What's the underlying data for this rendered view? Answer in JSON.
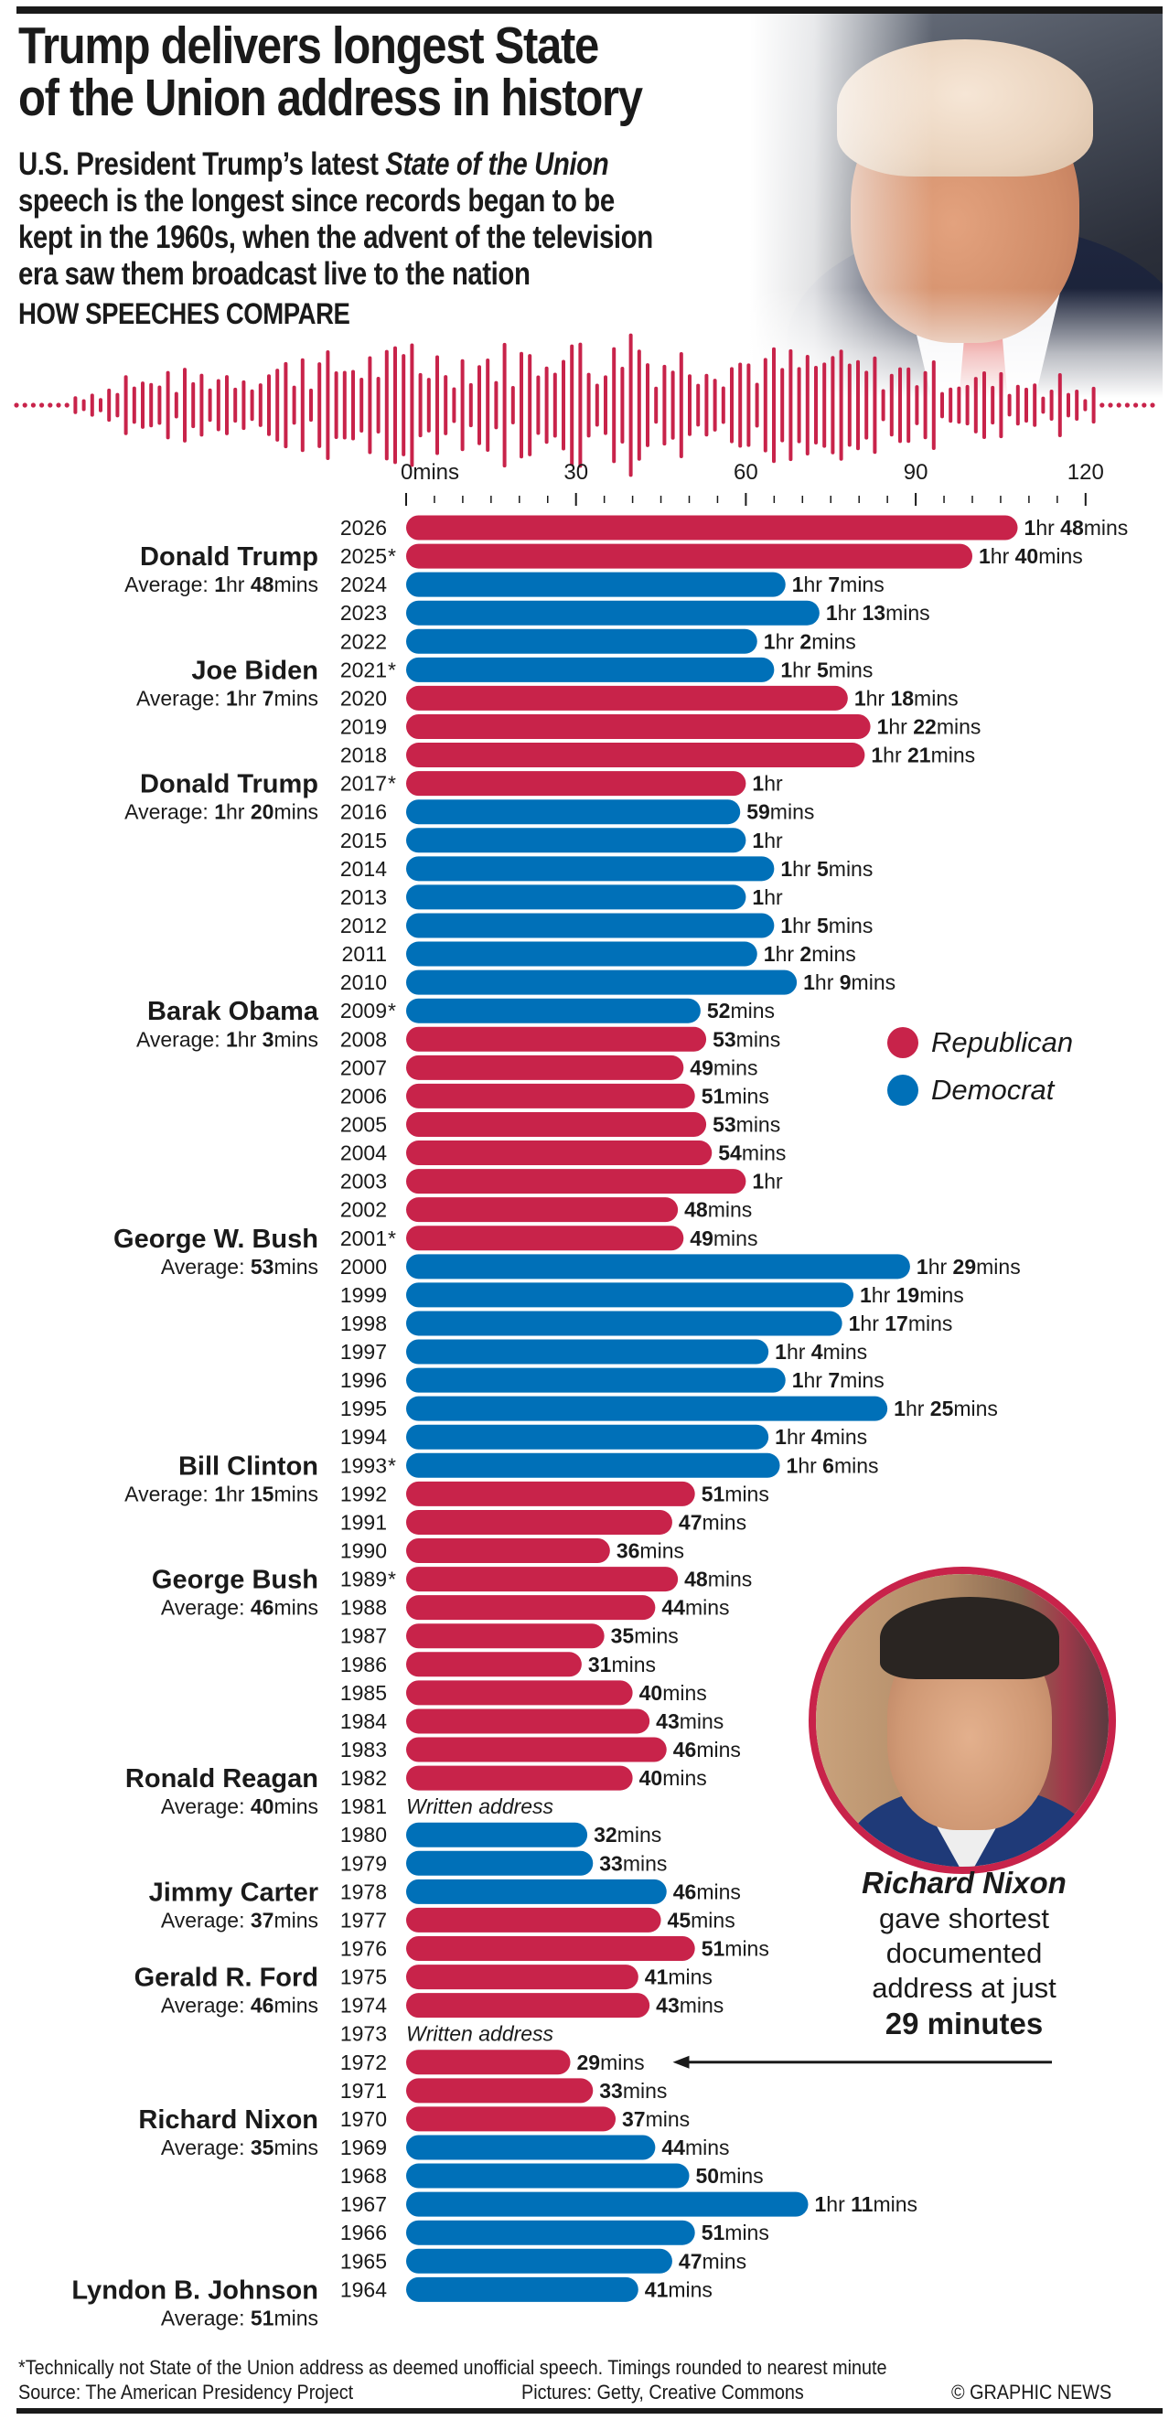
{
  "header": {
    "title_line1": "Trump delivers longest State",
    "title_line2": "of the Union address in history",
    "subtitle_line1_pre": "U.S. President Trump’s latest ",
    "subtitle_line1_italic": "State of the Union",
    "subtitle_line2": "speech is the longest since records began to be",
    "subtitle_line3": "kept in the 1960s, when the advent of the television",
    "subtitle_line4": "era saw them broadcast live to the nation",
    "section_heading": "HOW SPEECHES COMPARE"
  },
  "colors": {
    "republican": "#C8234A",
    "democrat": "#0070B8",
    "text": "#1a1a1a"
  },
  "legend": {
    "republican": "Republican",
    "democrat": "Democrat"
  },
  "annotation": {
    "name": "Richard Nixon",
    "line1": "gave shortest",
    "line2": "documented",
    "line3": "address at just",
    "highlight": "29 minutes"
  },
  "footer": {
    "footnote": "*Technically not State of the Union address as deemed unofficial speech. Timings rounded to nearest minute",
    "source": "Source: The American Presidency Project",
    "pictures": "Pictures: Getty, Creative Commons",
    "credit": "© GRAPHIC NEWS"
  },
  "chart_data": {
    "type": "bar",
    "orientation": "horizontal",
    "title": "HOW SPEECHES COMPARE",
    "xlabel": "mins",
    "xlim": [
      0,
      120
    ],
    "x_ticks": [
      0,
      30,
      60,
      90,
      120
    ],
    "x_tick_labels": [
      "0mins",
      "30",
      "60",
      "90",
      "120"
    ],
    "minor_tick_step": 5,
    "legend": [
      "Republican",
      "Democrat"
    ],
    "legend_position": "right-middle",
    "written_address_label": "Written address",
    "rows": [
      {
        "year": "2026",
        "minutes": 108,
        "label": "1hr 48mins",
        "party": "R"
      },
      {
        "year": "2025*",
        "minutes": 100,
        "label": "1hr 40mins",
        "party": "R"
      },
      {
        "year": "2024",
        "minutes": 67,
        "label": "1hr 7mins",
        "party": "D"
      },
      {
        "year": "2023",
        "minutes": 73,
        "label": "1hr 13mins",
        "party": "D"
      },
      {
        "year": "2022",
        "minutes": 62,
        "label": "1hr 2mins",
        "party": "D"
      },
      {
        "year": "2021*",
        "minutes": 65,
        "label": "1hr 5mins",
        "party": "D"
      },
      {
        "year": "2020",
        "minutes": 78,
        "label": "1hr 18mins",
        "party": "R"
      },
      {
        "year": "2019",
        "minutes": 82,
        "label": "1hr 22mins",
        "party": "R"
      },
      {
        "year": "2018",
        "minutes": 81,
        "label": "1hr 21mins",
        "party": "R"
      },
      {
        "year": "2017*",
        "minutes": 60,
        "label": "1hr",
        "party": "R"
      },
      {
        "year": "2016",
        "minutes": 59,
        "label": "59mins",
        "party": "D"
      },
      {
        "year": "2015",
        "minutes": 60,
        "label": "1hr",
        "party": "D"
      },
      {
        "year": "2014",
        "minutes": 65,
        "label": "1hr 5mins",
        "party": "D"
      },
      {
        "year": "2013",
        "minutes": 60,
        "label": "1hr",
        "party": "D"
      },
      {
        "year": "2012",
        "minutes": 65,
        "label": "1hr 5mins",
        "party": "D"
      },
      {
        "year": "2011",
        "minutes": 62,
        "label": "1hr 2mins",
        "party": "D"
      },
      {
        "year": "2010",
        "minutes": 69,
        "label": "1hr 9mins",
        "party": "D"
      },
      {
        "year": "2009*",
        "minutes": 52,
        "label": "52mins",
        "party": "D"
      },
      {
        "year": "2008",
        "minutes": 53,
        "label": "53mins",
        "party": "R"
      },
      {
        "year": "2007",
        "minutes": 49,
        "label": "49mins",
        "party": "R"
      },
      {
        "year": "2006",
        "minutes": 51,
        "label": "51mins",
        "party": "R"
      },
      {
        "year": "2005",
        "minutes": 53,
        "label": "53mins",
        "party": "R"
      },
      {
        "year": "2004",
        "minutes": 54,
        "label": "54mins",
        "party": "R"
      },
      {
        "year": "2003",
        "minutes": 60,
        "label": "1hr",
        "party": "R"
      },
      {
        "year": "2002",
        "minutes": 48,
        "label": "48mins",
        "party": "R"
      },
      {
        "year": "2001*",
        "minutes": 49,
        "label": "49mins",
        "party": "R"
      },
      {
        "year": "2000",
        "minutes": 89,
        "label": "1hr 29mins",
        "party": "D"
      },
      {
        "year": "1999",
        "minutes": 79,
        "label": "1hr 19mins",
        "party": "D"
      },
      {
        "year": "1998",
        "minutes": 77,
        "label": "1hr 17mins",
        "party": "D"
      },
      {
        "year": "1997",
        "minutes": 64,
        "label": "1hr 4mins",
        "party": "D"
      },
      {
        "year": "1996",
        "minutes": 67,
        "label": "1hr 7mins",
        "party": "D"
      },
      {
        "year": "1995",
        "minutes": 85,
        "label": "1hr 25mins",
        "party": "D"
      },
      {
        "year": "1994",
        "minutes": 64,
        "label": "1hr 4mins",
        "party": "D"
      },
      {
        "year": "1993*",
        "minutes": 66,
        "label": "1hr 6mins",
        "party": "D"
      },
      {
        "year": "1992",
        "minutes": 51,
        "label": "51mins",
        "party": "R"
      },
      {
        "year": "1991",
        "minutes": 47,
        "label": "47mins",
        "party": "R"
      },
      {
        "year": "1990",
        "minutes": 36,
        "label": "36mins",
        "party": "R"
      },
      {
        "year": "1989*",
        "minutes": 48,
        "label": "48mins",
        "party": "R"
      },
      {
        "year": "1988",
        "minutes": 44,
        "label": "44mins",
        "party": "R"
      },
      {
        "year": "1987",
        "minutes": 35,
        "label": "35mins",
        "party": "R"
      },
      {
        "year": "1986",
        "minutes": 31,
        "label": "31mins",
        "party": "R"
      },
      {
        "year": "1985",
        "minutes": 40,
        "label": "40mins",
        "party": "R"
      },
      {
        "year": "1984",
        "minutes": 43,
        "label": "43mins",
        "party": "R"
      },
      {
        "year": "1983",
        "minutes": 46,
        "label": "46mins",
        "party": "R"
      },
      {
        "year": "1982",
        "minutes": 40,
        "label": "40mins",
        "party": "R"
      },
      {
        "year": "1981",
        "minutes": null,
        "label": "Written address",
        "party": null
      },
      {
        "year": "1980",
        "minutes": 32,
        "label": "32mins",
        "party": "D"
      },
      {
        "year": "1979",
        "minutes": 33,
        "label": "33mins",
        "party": "D"
      },
      {
        "year": "1978",
        "minutes": 46,
        "label": "46mins",
        "party": "D"
      },
      {
        "year": "1977",
        "minutes": 45,
        "label": "45mins",
        "party": "R"
      },
      {
        "year": "1976",
        "minutes": 51,
        "label": "51mins",
        "party": "R"
      },
      {
        "year": "1975",
        "minutes": 41,
        "label": "41mins",
        "party": "R"
      },
      {
        "year": "1974",
        "minutes": 43,
        "label": "43mins",
        "party": "R"
      },
      {
        "year": "1973",
        "minutes": null,
        "label": "Written address",
        "party": null
      },
      {
        "year": "1972",
        "minutes": 29,
        "label": "29mins",
        "party": "R"
      },
      {
        "year": "1971",
        "minutes": 33,
        "label": "33mins",
        "party": "R"
      },
      {
        "year": "1970",
        "minutes": 37,
        "label": "37mins",
        "party": "R"
      },
      {
        "year": "1969",
        "minutes": 44,
        "label": "44mins",
        "party": "D"
      },
      {
        "year": "1968",
        "minutes": 50,
        "label": "50mins",
        "party": "D"
      },
      {
        "year": "1967",
        "minutes": 71,
        "label": "1hr 11mins",
        "party": "D"
      },
      {
        "year": "1966",
        "minutes": 51,
        "label": "51mins",
        "party": "D"
      },
      {
        "year": "1965",
        "minutes": 47,
        "label": "47mins",
        "party": "D"
      },
      {
        "year": "1964",
        "minutes": 41,
        "label": "41mins",
        "party": "D"
      }
    ],
    "presidents": [
      {
        "name": "Donald Trump",
        "name_year": "2025*",
        "average": "1hr 48mins"
      },
      {
        "name": "Joe Biden",
        "name_year": "2021*",
        "average": "1hr 7mins"
      },
      {
        "name": "Donald Trump",
        "name_year": "2017*",
        "average": "1hr 20mins"
      },
      {
        "name": "Barak Obama",
        "name_year": "2009*",
        "average": "1hr 3mins"
      },
      {
        "name": "George W. Bush",
        "name_year": "2001*",
        "average": "53mins"
      },
      {
        "name": "Bill Clinton",
        "name_year": "1993*",
        "average": "1hr 15mins"
      },
      {
        "name": "George Bush",
        "name_year": "1989*",
        "average": "46mins"
      },
      {
        "name": "Ronald Reagan",
        "name_year": "1982",
        "average": "40mins"
      },
      {
        "name": "Jimmy Carter",
        "name_year": "1978",
        "average": "37mins"
      },
      {
        "name": "Gerald R. Ford",
        "name_year": "1975",
        "average": "46mins"
      },
      {
        "name": "Richard Nixon",
        "name_year": "1970",
        "average": "35mins"
      },
      {
        "name": "Lyndon B. Johnson",
        "name_year": "1964",
        "average": "51mins"
      }
    ],
    "average_prefix": "Average: "
  }
}
